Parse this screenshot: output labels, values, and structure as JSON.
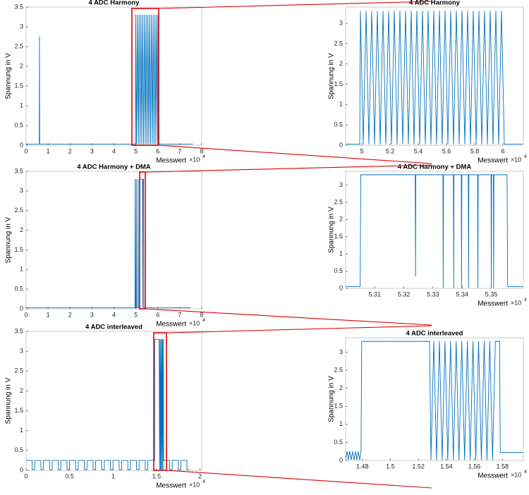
{
  "chart_data": [
    {
      "type": "line",
      "title": "4 ADC Harmony",
      "xlabel": "Messwert",
      "x_multiplier": "×10",
      "x_exponent": "4",
      "ylabel": "Spannung in V",
      "xlim": [
        0,
        8
      ],
      "xticks": [
        0,
        1,
        2,
        3,
        4,
        5,
        6,
        7,
        8
      ],
      "ylim": [
        0,
        3.5
      ],
      "yticks": [
        0,
        0.5,
        1,
        1.5,
        2,
        2.5,
        3,
        3.5
      ],
      "series": [
        {
          "color": "#0072bd",
          "x": [
            0,
            0.6,
            0.61,
            0.62,
            4.985,
            4.99,
            5.03,
            5.07,
            5.11,
            5.15,
            5.19,
            5.23,
            5.27,
            5.31,
            5.35,
            5.39,
            5.43,
            5.47,
            5.51,
            5.55,
            5.59,
            5.63,
            5.67,
            5.71,
            5.75,
            5.79,
            5.83,
            5.87,
            5.91,
            5.95,
            5.99,
            6.01,
            6.02,
            7.6
          ],
          "values": [
            0.03,
            0.03,
            2.75,
            0.03,
            0.03,
            3.3,
            0.03,
            3.3,
            0.03,
            3.3,
            0.03,
            3.3,
            0.03,
            3.3,
            0.03,
            3.3,
            0.03,
            3.3,
            0.03,
            3.3,
            0.03,
            3.3,
            0.03,
            3.3,
            0.03,
            3.3,
            0.03,
            3.3,
            0.03,
            3.3,
            0.03,
            3.3,
            0.03,
            0.03
          ]
        }
      ]
    },
    {
      "type": "line",
      "title": "4 ADC Harmony",
      "xlabel": "Messwert",
      "x_multiplier": "×10",
      "x_exponent": "4",
      "ylabel": "Spannung in V",
      "xlim": [
        4.885,
        6.145
      ],
      "xticks": [
        5,
        5.2,
        5.4,
        5.6,
        5.8,
        6
      ],
      "ylim": [
        0,
        3.4
      ],
      "yticks": [
        0,
        0.5,
        1,
        1.5,
        2,
        2.5,
        3
      ],
      "series": [
        {
          "color": "#0072bd",
          "x": [
            4.89,
            4.985,
            4.99,
            5.01,
            5.03,
            5.05,
            5.07,
            5.09,
            5.11,
            5.13,
            5.15,
            5.17,
            5.19,
            5.21,
            5.23,
            5.25,
            5.27,
            5.29,
            5.31,
            5.33,
            5.35,
            5.37,
            5.39,
            5.41,
            5.43,
            5.45,
            5.47,
            5.49,
            5.51,
            5.53,
            5.55,
            5.57,
            5.59,
            5.61,
            5.63,
            5.65,
            5.67,
            5.69,
            5.71,
            5.73,
            5.75,
            5.77,
            5.79,
            5.81,
            5.83,
            5.85,
            5.87,
            5.89,
            5.91,
            5.93,
            5.95,
            5.97,
            5.99,
            6.01,
            6.14
          ],
          "values": [
            0.03,
            0.03,
            3.3,
            0.03,
            3.3,
            0.03,
            3.3,
            0.03,
            3.3,
            0.03,
            3.3,
            0.03,
            3.3,
            0.03,
            3.3,
            0.03,
            3.3,
            0.03,
            3.3,
            0.03,
            3.3,
            0.03,
            3.3,
            0.03,
            3.3,
            0.03,
            3.3,
            0.03,
            3.3,
            0.03,
            3.3,
            0.03,
            3.3,
            0.03,
            3.3,
            0.03,
            3.3,
            0.03,
            3.3,
            0.03,
            3.3,
            0.03,
            3.3,
            0.03,
            3.3,
            0.03,
            3.3,
            0.03,
            3.3,
            0.03,
            3.3,
            0.03,
            3.3,
            0.03,
            0.03
          ]
        }
      ]
    },
    {
      "type": "line",
      "title": "4 ADC Harmony + DMA",
      "xlabel": "Messwert",
      "x_multiplier": "×10",
      "x_exponent": "4",
      "ylabel": "Spannung in V",
      "xlim": [
        0,
        8
      ],
      "xticks": [
        0,
        1,
        2,
        3,
        4,
        5,
        6,
        7,
        8
      ],
      "ylim": [
        0,
        3.5
      ],
      "yticks": [
        0,
        0.5,
        1,
        1.5,
        2,
        2.5,
        3,
        3.5
      ],
      "series": [
        {
          "color": "#0072bd",
          "x": [
            0,
            4.96,
            4.97,
            4.98,
            5.01,
            5.02,
            5.03,
            5.09,
            5.1,
            5.11,
            5.17,
            5.18,
            5.3,
            5.31,
            5.32,
            5.33,
            5.35,
            5.36,
            7.5
          ],
          "values": [
            0.03,
            0.03,
            3.3,
            0.03,
            0.03,
            3.3,
            0.03,
            0.03,
            3.3,
            0.03,
            0.03,
            3.3,
            3.3,
            0.03,
            3.3,
            3.3,
            3.3,
            0.03,
            0.03
          ]
        }
      ]
    },
    {
      "type": "line",
      "title": "4 ADC Harmony + DMA",
      "xlabel": "Messwert",
      "x_multiplier": "×10",
      "x_exponent": "4",
      "ylabel": "Spannung in V",
      "xlim": [
        5.3,
        5.361
      ],
      "xticks": [
        5.31,
        5.32,
        5.33,
        5.34,
        5.35
      ],
      "ylim": [
        0,
        3.4
      ],
      "yticks": [
        0,
        0.5,
        1,
        1.5,
        2,
        2.5,
        3
      ],
      "series": [
        {
          "color": "#0072bd",
          "x": [
            5.3,
            5.305,
            5.3052,
            5.3239,
            5.324,
            5.3241,
            5.3334,
            5.3335,
            5.3336,
            5.337,
            5.3371,
            5.3372,
            5.3397,
            5.3398,
            5.3399,
            5.3421,
            5.3422,
            5.3423,
            5.3453,
            5.3454,
            5.3455,
            5.3499,
            5.35,
            5.3501,
            5.3507,
            5.3508,
            5.3509,
            5.3554,
            5.3556,
            5.361
          ],
          "values": [
            0.05,
            0.05,
            3.3,
            3.3,
            0.35,
            3.3,
            3.3,
            0.02,
            3.3,
            3.3,
            0.02,
            3.3,
            3.3,
            0.02,
            3.3,
            3.3,
            0.02,
            3.3,
            3.3,
            0.02,
            3.3,
            3.3,
            0.02,
            3.3,
            3.3,
            0.02,
            3.3,
            3.3,
            0.05,
            0.05
          ]
        }
      ]
    },
    {
      "type": "line",
      "title": "4 ADC interleaved",
      "xlabel": "Messwert",
      "x_multiplier": "×10",
      "x_exponent": "4",
      "ylabel": "Spannung in V",
      "xlim": [
        0,
        2.02
      ],
      "xticks": [
        0,
        0.5,
        1,
        1.5,
        2
      ],
      "ylim": [
        0,
        3.5
      ],
      "yticks": [
        0,
        0.5,
        1,
        1.5,
        2,
        2.5,
        3,
        3.5
      ],
      "series": [
        {
          "color": "#0072bd",
          "x": [
            0,
            0.07,
            0.07,
            0.1,
            0.1,
            0.17,
            0.17,
            0.2,
            0.2,
            0.27,
            0.27,
            0.3,
            0.3,
            0.37,
            0.37,
            0.4,
            0.4,
            0.47,
            0.47,
            0.5,
            0.5,
            0.57,
            0.57,
            0.6,
            0.6,
            0.67,
            0.67,
            0.7,
            0.7,
            0.77,
            0.77,
            0.8,
            0.8,
            0.87,
            0.87,
            0.9,
            0.9,
            0.97,
            0.97,
            1.0,
            1.0,
            1.07,
            1.07,
            1.1,
            1.1,
            1.17,
            1.17,
            1.2,
            1.2,
            1.27,
            1.27,
            1.3,
            1.3,
            1.37,
            1.37,
            1.4,
            1.4,
            1.47,
            1.479,
            1.48,
            1.53,
            1.535,
            1.54,
            1.545,
            1.55,
            1.555,
            1.56,
            1.565,
            1.57,
            1.575,
            1.58,
            1.581,
            1.65,
            1.65,
            1.68,
            1.68,
            1.75,
            1.75,
            1.78,
            1.78,
            1.85,
            1.85,
            1.87
          ],
          "values": [
            0.25,
            0.25,
            0.02,
            0.02,
            0.25,
            0.25,
            0.02,
            0.02,
            0.25,
            0.25,
            0.02,
            0.02,
            0.25,
            0.25,
            0.02,
            0.02,
            0.25,
            0.25,
            0.02,
            0.02,
            0.25,
            0.25,
            0.02,
            0.02,
            0.25,
            0.25,
            0.02,
            0.02,
            0.25,
            0.25,
            0.02,
            0.02,
            0.25,
            0.25,
            0.02,
            0.02,
            0.25,
            0.25,
            0.02,
            0.02,
            0.25,
            0.25,
            0.02,
            0.02,
            0.25,
            0.25,
            0.02,
            0.02,
            0.25,
            0.25,
            0.02,
            0.02,
            0.25,
            0.25,
            0.02,
            0.02,
            0.25,
            0.25,
            0.25,
            3.3,
            3.3,
            0.02,
            3.3,
            0.02,
            3.3,
            0.02,
            3.3,
            0.02,
            3.3,
            0.02,
            3.3,
            0.25,
            0.25,
            0.02,
            0.02,
            0.25,
            0.25,
            0.02,
            0.02,
            0.25,
            0.25,
            0.02,
            0.02
          ]
        }
      ]
    },
    {
      "type": "line",
      "title": "4 ADC interleaved",
      "xlabel": "Messwert",
      "x_multiplier": "×10",
      "x_exponent": "4",
      "ylabel": "Spannung in V",
      "xlim": [
        1.468,
        1.595
      ],
      "xticks": [
        1.48,
        1.5,
        1.52,
        1.54,
        1.56,
        1.58
      ],
      "ylim": [
        0,
        3.4
      ],
      "yticks": [
        0,
        0.5,
        1,
        1.5,
        2,
        2.5,
        3
      ],
      "series": [
        {
          "color": "#0072bd",
          "x": [
            1.468,
            1.469,
            1.47,
            1.471,
            1.472,
            1.473,
            1.474,
            1.475,
            1.476,
            1.477,
            1.478,
            1.479,
            1.4795,
            1.528,
            1.529,
            1.531,
            1.533,
            1.535,
            1.537,
            1.539,
            1.541,
            1.543,
            1.545,
            1.547,
            1.549,
            1.551,
            1.553,
            1.555,
            1.557,
            1.559,
            1.561,
            1.563,
            1.565,
            1.567,
            1.569,
            1.571,
            1.573,
            1.575,
            1.578,
            1.5785,
            1.595
          ],
          "values": [
            0.02,
            0.25,
            0.02,
            0.25,
            0.02,
            0.25,
            0.02,
            0.25,
            0.02,
            0.25,
            0.02,
            0.25,
            3.3,
            3.3,
            0.02,
            3.3,
            0.02,
            3.3,
            0.02,
            3.3,
            0.02,
            3.3,
            0.02,
            3.3,
            0.02,
            3.3,
            0.02,
            3.3,
            0.02,
            3.3,
            0.02,
            3.3,
            0.02,
            3.3,
            0.02,
            3.3,
            0.02,
            3.3,
            3.3,
            0.22,
            0.22
          ]
        }
      ]
    }
  ]
}
